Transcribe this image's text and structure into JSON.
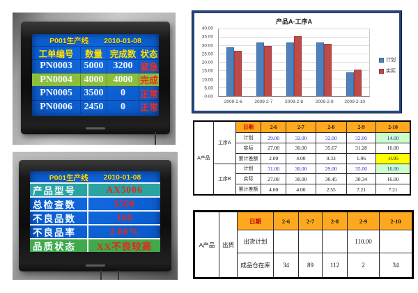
{
  "monitor_top": {
    "title": "P001生产线",
    "date": "2010-01-08",
    "columns": [
      "工单编号",
      "数量",
      "完成数",
      "状态"
    ],
    "rows": [
      {
        "order": "PN0003",
        "qty": "5000",
        "done": "3200",
        "status": "紧急"
      },
      {
        "order": "PN0004",
        "qty": "4000",
        "done": "4000",
        "status": "完成"
      },
      {
        "order": "PN0005",
        "qty": "3500",
        "done": "0",
        "status": "正常"
      },
      {
        "order": "PN0006",
        "qty": "2450",
        "done": "0",
        "status": "正常"
      }
    ]
  },
  "monitor_bottom": {
    "title": "P001生产线",
    "date": "2010-01-08",
    "rows": [
      {
        "label": "产品型号",
        "value": "AX5006"
      },
      {
        "label": "总检查数",
        "value": "3500"
      },
      {
        "label": "不良品数",
        "value": "100"
      },
      {
        "label": "不良品率",
        "value": "2.86%"
      },
      {
        "label": "品质状态",
        "value": "XX不良较高"
      }
    ]
  },
  "chart_data": {
    "type": "bar",
    "title": "产品A-工序A",
    "categories": [
      "2009-2-6",
      "2009-2-7",
      "2009-2-8",
      "2009-2-9",
      "2009-2-10"
    ],
    "series": [
      {
        "name": "计划",
        "color": "#4F81BD",
        "values": [
          29.0,
          32.0,
          32.0,
          32.0,
          14.0
        ]
      },
      {
        "name": "实际",
        "color": "#BE4B48",
        "values": [
          27.0,
          30.0,
          35.67,
          31.28,
          16.0
        ]
      }
    ],
    "xlabel": "",
    "ylabel": "",
    "ylim": [
      0,
      40
    ],
    "ytick_step": 5,
    "grid": true,
    "legend_position": "right"
  },
  "process_table": {
    "product": "A产品",
    "date_label": "日期",
    "dates": [
      "2-6",
      "2-7",
      "2-8",
      "2-9",
      "2-10"
    ],
    "groups": [
      {
        "name": "工序A",
        "rows": [
          {
            "label": "计划",
            "values": [
              "29.00",
              "32.00",
              "32.00",
              "32.00",
              "14.00"
            ]
          },
          {
            "label": "实际",
            "values": [
              "27.00",
              "30.00",
              "35.67",
              "31.28",
              "16.00"
            ]
          },
          {
            "label": "累计差额",
            "values": [
              "2.00",
              "4.00",
              "0.33",
              "1.06",
              "-0.95"
            ]
          }
        ]
      },
      {
        "name": "工序B",
        "rows": [
          {
            "label": "计划",
            "values": [
              "31.00",
              "30.00",
              "29.00",
              "35.00",
              "16.00"
            ]
          },
          {
            "label": "实际",
            "values": [
              "27.00",
              "30.00",
              "30.45",
              "30.34",
              "16.00"
            ]
          },
          {
            "label": "累计差额",
            "values": [
              "4.00",
              "4.00",
              "2.55",
              "7.21",
              "7.21"
            ]
          }
        ]
      }
    ]
  },
  "shipping_table": {
    "product": "A产品",
    "group": "出货",
    "date_label": "日期",
    "dates": [
      "2-6",
      "2-7",
      "2-8",
      "2-9",
      "2-10"
    ],
    "rows": [
      {
        "label": "出货计划",
        "values": [
          "",
          "",
          "",
          "110.00",
          ""
        ]
      },
      {
        "label": "成品仓在库",
        "values": [
          "34",
          "89",
          "112",
          "2",
          "34"
        ]
      }
    ]
  },
  "colors": {
    "screen_blue": "#0B5CCC",
    "screen_title_yellow": "#FFDF00",
    "screen_text_white": "#F3F7FF",
    "screen_status_red": "#EF2C1E",
    "row_done_green": "#8CBE3C",
    "row_teal": "#2BA3A0",
    "row_quality_green": "#3FA94C",
    "table_header_orange": "#FFA81F",
    "date_label_red": "#C00000",
    "plan_text_blue": "#2323CC",
    "cell_highlight_green": "#CCFFCC",
    "cell_highlight_yellow": "#FFFF00",
    "bar_plan_blue": "#4F81BD",
    "bar_actual_red": "#BE4B48",
    "chart_border_navy": "#24477F"
  }
}
